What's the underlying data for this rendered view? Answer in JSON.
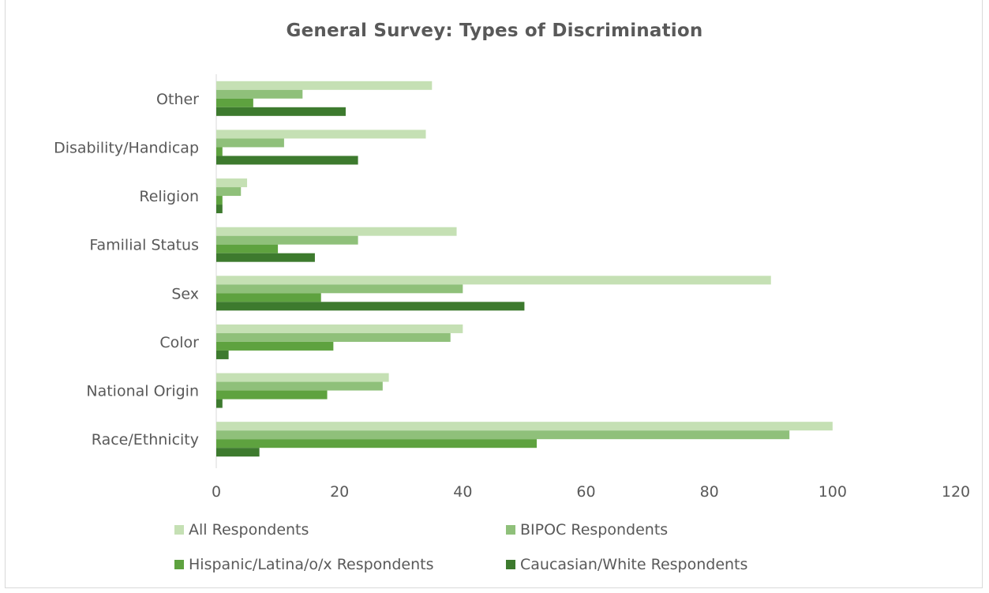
{
  "chart_data": {
    "type": "bar",
    "orientation": "horizontal",
    "title": "General Survey: Types of Discrimination",
    "xlabel": "",
    "ylabel": "",
    "xlim": [
      0,
      120
    ],
    "x_ticks": [
      "0",
      "20",
      "40",
      "60",
      "80",
      "100",
      "120"
    ],
    "grid": false,
    "legend_position": "bottom",
    "categories": [
      "Other",
      "Disability/Handicap",
      "Religion",
      "Familial Status",
      "Sex",
      "Color",
      "National Origin",
      "Race/Ethnicity"
    ],
    "series": [
      {
        "name": "All Respondents",
        "color": "#c5e0b4",
        "values": [
          35,
          34,
          5,
          39,
          90,
          40,
          28,
          100
        ]
      },
      {
        "name": "BIPOC Respondents",
        "color": "#8fc07a",
        "values": [
          14,
          11,
          4,
          23,
          40,
          38,
          27,
          93
        ]
      },
      {
        "name": "Hispanic/Latina/o/x Respondents",
        "color": "#5ea23f",
        "values": [
          6,
          1,
          1,
          10,
          17,
          19,
          18,
          52
        ]
      },
      {
        "name": "Caucasian/White Respondents",
        "color": "#3d7a2e",
        "values": [
          21,
          23,
          1,
          16,
          50,
          2,
          1,
          7
        ]
      }
    ]
  },
  "colors": {
    "axis_text": "#595959",
    "frame": "#d9d9d9",
    "axis_line": "#d9d9d9"
  }
}
